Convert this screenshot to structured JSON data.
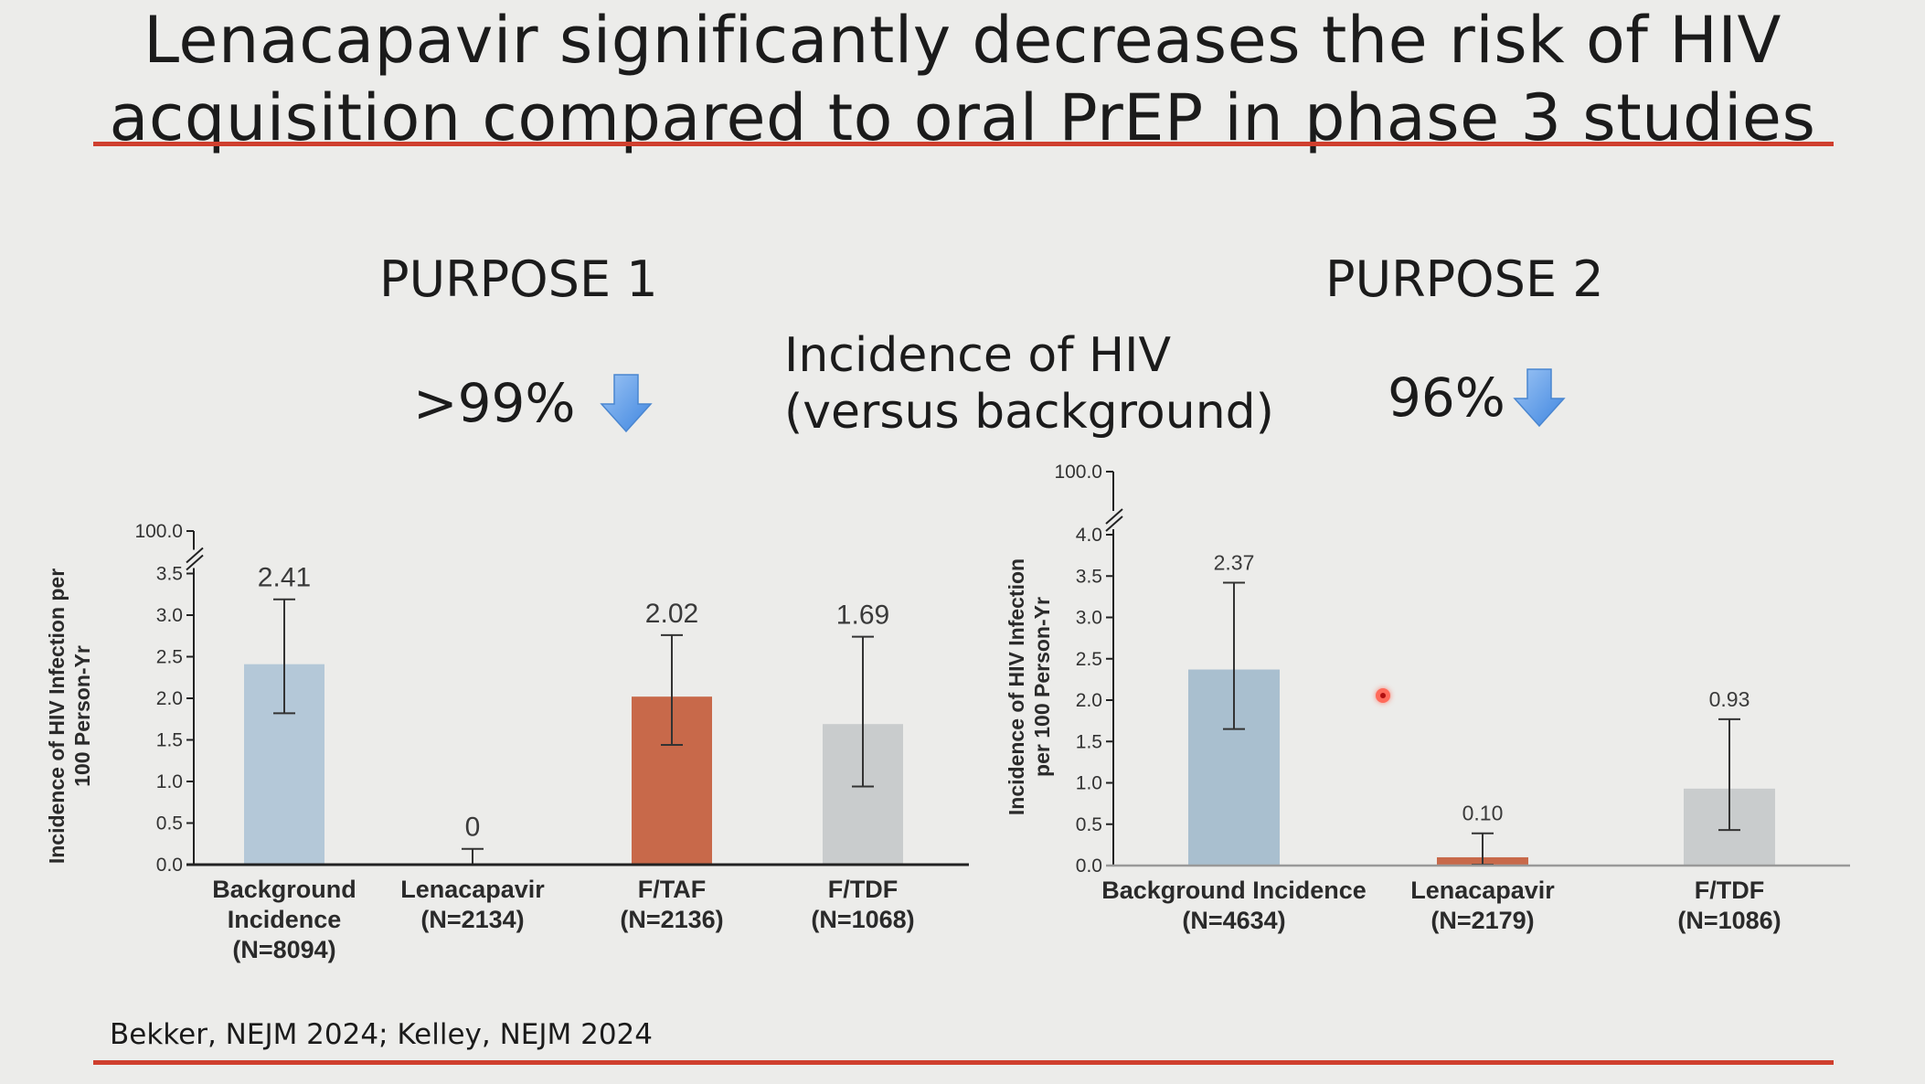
{
  "slide": {
    "title_line1": "Lenacapavir significantly decreases the risk of  HIV",
    "title_line2": "acquisition compared to oral PrEP in phase 3 studies",
    "center_note_line1": "Incidence of  HIV",
    "center_note_line2": "(versus background)",
    "citation": "Bekker, NEJM 2024; Kelley, NEJM 2024",
    "rule_color": "#cf3f2e",
    "arrow_icon": "down-arrow-icon",
    "arrow_color": "#5b9be8"
  },
  "purpose1": {
    "label": "PURPOSE 1",
    "reduction": ">99%"
  },
  "purpose2": {
    "label": "PURPOSE 2",
    "reduction": "96%"
  },
  "chart_data": [
    {
      "type": "bar",
      "title": "PURPOSE 1",
      "ylabel_lines": [
        "Incidence of HIV Infection per",
        "100 Person-Yr"
      ],
      "ylim": [
        0,
        3.5
      ],
      "ybreak_label": "100.0",
      "yticks": [
        "0.0",
        "0.5",
        "1.0",
        "1.5",
        "2.0",
        "2.5",
        "3.0",
        "3.5"
      ],
      "value_font_size": 30,
      "categories": [
        {
          "lines": [
            "Background",
            "Incidence",
            "(N=8094)"
          ],
          "value": 2.41,
          "label": "2.41",
          "ci": [
            1.82,
            3.19
          ],
          "color": "#b4c8d8"
        },
        {
          "lines": [
            "Lenacapavir",
            "(N=2134)"
          ],
          "value": 0,
          "label": "0",
          "ci": [
            0.0,
            0.19
          ],
          "color": "#d07050"
        },
        {
          "lines": [
            "F/TAF",
            "(N=2136)"
          ],
          "value": 2.02,
          "label": "2.02",
          "ci": [
            1.44,
            2.76
          ],
          "color": "#c8694a"
        },
        {
          "lines": [
            "F/TDF",
            "(N=1068)"
          ],
          "value": 1.69,
          "label": "1.69",
          "ci": [
            0.94,
            2.74
          ],
          "color": "#c9cccd"
        }
      ]
    },
    {
      "type": "bar",
      "title": "PURPOSE 2",
      "ylabel_lines": [
        "Incidence of HIV Infection",
        "per 100 Person-Yr"
      ],
      "ylim": [
        0,
        4.0
      ],
      "ybreak_label": "100.0",
      "yticks": [
        "0.0",
        "0.5",
        "1.0",
        "1.5",
        "2.0",
        "2.5",
        "3.0",
        "3.5",
        "4.0"
      ],
      "value_font_size": 23,
      "categories": [
        {
          "lines": [
            "Background Incidence",
            "(N=4634)"
          ],
          "value": 2.37,
          "label": "2.37",
          "ci": [
            1.65,
            3.42
          ],
          "color": "#a9bfcf"
        },
        {
          "lines": [
            "Lenacapavir",
            "(N=2179)"
          ],
          "value": 0.1,
          "label": "0.10",
          "ci": [
            0.01,
            0.39
          ],
          "color": "#c8694a"
        },
        {
          "lines": [
            "F/TDF",
            "(N=1086)"
          ],
          "value": 0.93,
          "label": "0.93",
          "ci": [
            0.43,
            1.77
          ],
          "color": "#c9cccd"
        }
      ]
    }
  ]
}
